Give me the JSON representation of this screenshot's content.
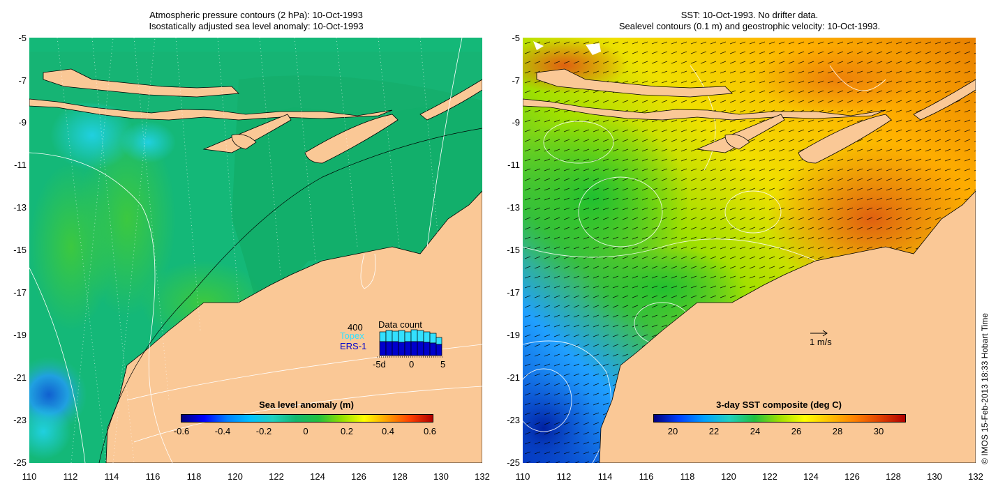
{
  "left_panel": {
    "title_line1": "Atmospheric pressure contours (2 hPa): 10-Oct-1993",
    "title_line2": "Isostatically adjusted sea level anomaly: 10-Oct-1993",
    "colorbar": {
      "title": "Sea level anomaly (m)",
      "ticks": [
        "-0.6",
        "-0.4",
        "-0.2",
        "0",
        "0.2",
        "0.4",
        "0.6"
      ]
    },
    "data_count": {
      "label": "Data count",
      "max_label": "400",
      "topex_label": "Topex",
      "ers_label": "ERS-1",
      "x_labels": [
        "-5d",
        "0",
        "5"
      ],
      "topex_color": "#33e0ff",
      "ers_color": "#0000cc"
    }
  },
  "right_panel": {
    "title_line1": "SST: 10-Oct-1993. No drifter data.",
    "title_line2": "Sealevel contours (0.1 m) and geostrophic velocity: 10-Oct-1993.",
    "colorbar": {
      "title": "3-day SST composite (deg C)",
      "ticks": [
        "20",
        "22",
        "24",
        "26",
        "28",
        "30"
      ]
    },
    "velocity_scale_label": "1 m/s"
  },
  "axes": {
    "y_ticks": [
      "-5",
      "-7",
      "-9",
      "-11",
      "-13",
      "-15",
      "-17",
      "-19",
      "-21",
      "-23",
      "-25"
    ],
    "x_ticks": [
      "110",
      "112",
      "114",
      "116",
      "118",
      "120",
      "122",
      "124",
      "126",
      "128",
      "130",
      "132"
    ]
  },
  "copyright": "© IMOS 15-Feb-2013 18:33 Hobart Time",
  "colors": {
    "land": "#fac896",
    "sla_ocean": "#10b870",
    "sst_ocean": "#ffcc00"
  }
}
